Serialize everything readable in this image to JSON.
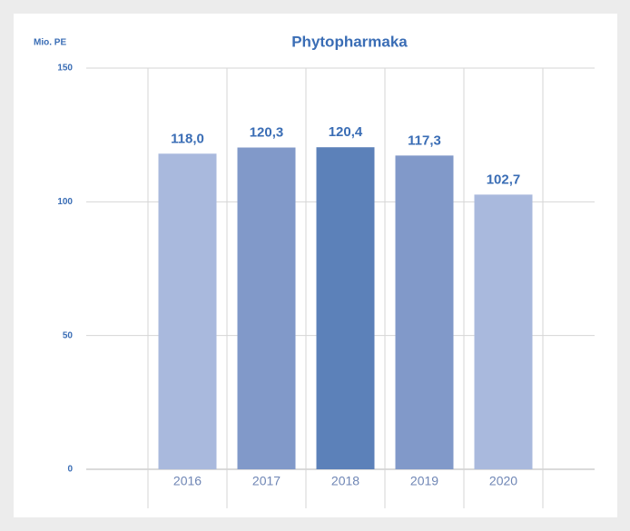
{
  "chart_data": {
    "type": "bar",
    "title": "Phytopharmaka",
    "ylabel": "Mio. PE",
    "categories": [
      "2016",
      "2017",
      "2018",
      "2019",
      "2020"
    ],
    "values": [
      118.0,
      120.3,
      120.4,
      117.3,
      102.7
    ],
    "value_labels": [
      "118,0",
      "120,3",
      "120,4",
      "117,3",
      "102,7"
    ],
    "colors": [
      "#a9b9dd",
      "#8199c9",
      "#5c81b9",
      "#8199c9",
      "#a9b9dd"
    ],
    "ylim": [
      0,
      150
    ],
    "yticks": [
      0,
      50,
      100,
      150
    ],
    "grid": true
  }
}
